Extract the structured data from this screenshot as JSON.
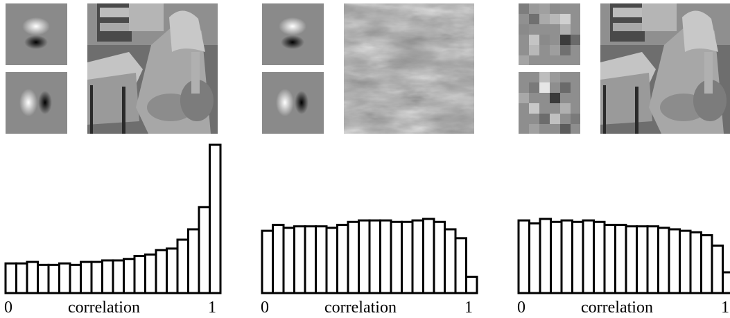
{
  "panels": [
    {
      "filters": [
        "horizontal-edge-filter",
        "vertical-edge-filter"
      ],
      "image": "natural-photo-woman-with-scarf",
      "chart_data": {
        "type": "bar",
        "xlabel": "correlation",
        "xticks": [
          "0",
          "1"
        ],
        "xlim": [
          0,
          1
        ],
        "values": [
          0.2,
          0.2,
          0.21,
          0.19,
          0.19,
          0.2,
          0.19,
          0.21,
          0.21,
          0.22,
          0.22,
          0.23,
          0.25,
          0.26,
          0.29,
          0.3,
          0.36,
          0.43,
          0.58,
          1.0
        ]
      }
    },
    {
      "filters": [
        "horizontal-edge-filter",
        "vertical-edge-filter"
      ],
      "image": "noise-texture",
      "chart_data": {
        "type": "bar",
        "xlabel": "correlation",
        "xticks": [
          "0",
          "1"
        ],
        "xlim": [
          0,
          1
        ],
        "values": [
          0.42,
          0.46,
          0.44,
          0.45,
          0.45,
          0.45,
          0.44,
          0.46,
          0.48,
          0.49,
          0.49,
          0.49,
          0.48,
          0.48,
          0.49,
          0.5,
          0.48,
          0.43,
          0.37,
          0.11
        ]
      }
    },
    {
      "filters": [
        "random-filter-1",
        "random-filter-2"
      ],
      "image": "natural-photo-woman-with-scarf",
      "chart_data": {
        "type": "bar",
        "xlabel": "correlation",
        "xticks": [
          "0",
          "1"
        ],
        "xlim": [
          0,
          1
        ],
        "values": [
          0.49,
          0.47,
          0.5,
          0.48,
          0.49,
          0.48,
          0.49,
          0.48,
          0.46,
          0.46,
          0.45,
          0.45,
          0.45,
          0.44,
          0.43,
          0.42,
          0.41,
          0.39,
          0.32,
          0.14
        ]
      }
    }
  ]
}
